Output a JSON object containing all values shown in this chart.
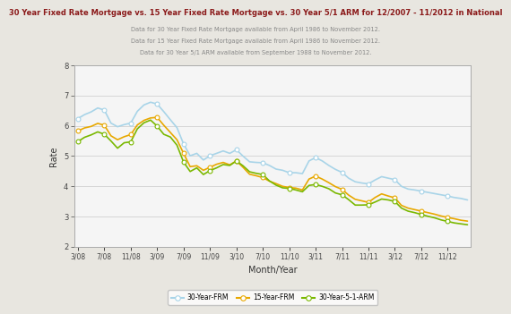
{
  "title": "30 Year Fixed Rate Mortgage vs. 15 Year Fixed Rate Mortgage vs. 30 Year 5/1 ARM for 12/2007 - 11/2012 in National",
  "subtitle1": "Data for 30 Year Fixed Rate Mortgage available from April 1986 to November 2012.",
  "subtitle2": "Data for 15 Year Fixed Rate Mortgage available from April 1986 to November 2012.",
  "subtitle3": "Data for 30 Year 5/1 ARM available from September 1988 to November 2012.",
  "xlabel": "Month/Year",
  "ylabel": "Rate",
  "ylim": [
    2,
    8
  ],
  "yticks": [
    2,
    3,
    4,
    5,
    6,
    7,
    8
  ],
  "xtick_labels": [
    "3/08",
    "7/08",
    "11/08",
    "3/09",
    "7/09",
    "11/09",
    "3/10",
    "7/10",
    "11/10",
    "3/11",
    "7/11",
    "11/11",
    "3/12",
    "7/12",
    "11/12"
  ],
  "bg_color": "#e8e6e0",
  "plot_bg_color": "#f5f5f5",
  "grid_color": "#d0d0d0",
  "title_color": "#8b1a1a",
  "subtitle_color": "#888888",
  "legend_labels": [
    "30-Year-FRM",
    "15-Year-FRM",
    "30-Year-5-1-ARM"
  ],
  "line_colors": [
    "#a8d4e8",
    "#e8a800",
    "#7ab800"
  ],
  "frm30": [
    6.24,
    6.37,
    6.46,
    6.59,
    6.52,
    6.09,
    5.97,
    6.04,
    6.09,
    6.48,
    6.69,
    6.78,
    6.72,
    6.47,
    6.2,
    5.94,
    5.4,
    5.01,
    5.09,
    4.87,
    5.01,
    5.09,
    5.17,
    5.09,
    5.21,
    5.0,
    4.81,
    4.79,
    4.78,
    4.69,
    4.57,
    4.53,
    4.45,
    4.45,
    4.42,
    4.84,
    4.95,
    4.84,
    4.69,
    4.56,
    4.46,
    4.27,
    4.15,
    4.11,
    4.08,
    4.21,
    4.32,
    4.27,
    4.22,
    4.0,
    3.91,
    3.88,
    3.84,
    3.8,
    3.76,
    3.72,
    3.68,
    3.63,
    3.6,
    3.55
  ],
  "frm15": [
    5.83,
    5.93,
    5.98,
    6.08,
    6.02,
    5.67,
    5.54,
    5.64,
    5.71,
    6.03,
    6.18,
    6.26,
    6.28,
    6.02,
    5.78,
    5.54,
    5.09,
    4.65,
    4.68,
    4.53,
    4.63,
    4.73,
    4.79,
    4.71,
    4.84,
    4.63,
    4.4,
    4.35,
    4.29,
    4.17,
    4.09,
    4.0,
    3.96,
    3.94,
    3.88,
    4.24,
    4.34,
    4.24,
    4.12,
    3.99,
    3.9,
    3.71,
    3.57,
    3.52,
    3.47,
    3.63,
    3.75,
    3.68,
    3.62,
    3.37,
    3.28,
    3.23,
    3.18,
    3.13,
    3.08,
    3.02,
    2.97,
    2.93,
    2.88,
    2.85
  ],
  "arm30": [
    5.48,
    5.62,
    5.7,
    5.8,
    5.72,
    5.5,
    5.26,
    5.44,
    5.47,
    5.9,
    6.1,
    6.19,
    5.99,
    5.72,
    5.63,
    5.36,
    4.8,
    4.49,
    4.61,
    4.39,
    4.52,
    4.61,
    4.72,
    4.69,
    4.84,
    4.68,
    4.48,
    4.43,
    4.39,
    4.18,
    4.04,
    3.95,
    3.93,
    3.88,
    3.82,
    4.03,
    4.06,
    4.0,
    3.92,
    3.78,
    3.72,
    3.56,
    3.38,
    3.38,
    3.39,
    3.48,
    3.58,
    3.55,
    3.5,
    3.28,
    3.18,
    3.13,
    3.07,
    3.01,
    2.96,
    2.89,
    2.84,
    2.79,
    2.76,
    2.73
  ]
}
